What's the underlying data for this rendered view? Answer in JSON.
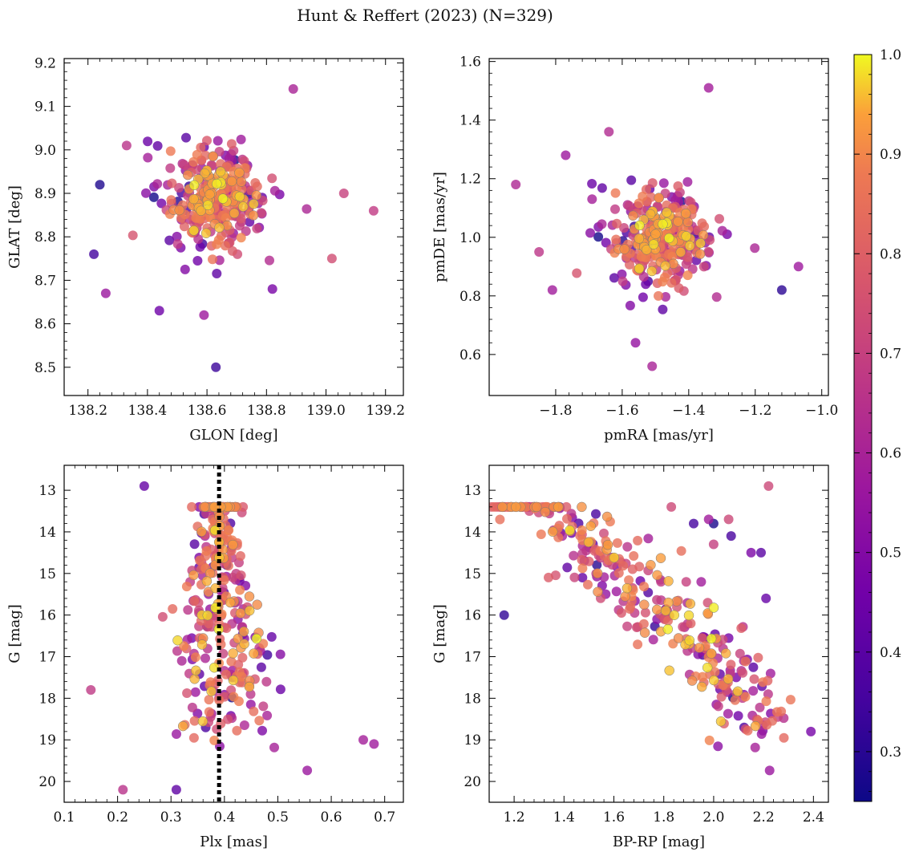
{
  "figure": {
    "title": "Hunt & Reffert (2023) (N=329)"
  },
  "colorbar": {
    "range": [
      0.25,
      1.0
    ],
    "ticks": [
      0.3,
      0.4,
      0.5,
      0.6,
      0.7,
      0.8,
      0.9,
      1.0
    ],
    "tick_labels": [
      "0.3",
      "0.4",
      "0.5",
      "0.6",
      "0.7",
      "0.8",
      "0.9",
      "1.0"
    ],
    "colormap": "plasma"
  },
  "chart_data": [
    {
      "type": "scatter",
      "xlabel": "GLON [deg]",
      "ylabel": "GLAT [deg]",
      "xlim": [
        138.12,
        139.26
      ],
      "ylim": [
        8.435,
        9.21
      ],
      "xticks": [
        138.2,
        138.4,
        138.6,
        138.8,
        139.0,
        139.2
      ],
      "xtick_labels": [
        "138.2",
        "138.4",
        "138.6",
        "138.8",
        "139.0",
        "139.2"
      ],
      "yticks": [
        8.5,
        8.6,
        8.7,
        8.8,
        8.9,
        9.0,
        9.1,
        9.2
      ],
      "ytick_labels": [
        "8.5",
        "8.6",
        "8.7",
        "8.8",
        "8.9",
        "9.0",
        "9.1",
        "9.2"
      ],
      "x_center": 138.62,
      "y_center": 8.89,
      "x_spread": 0.12,
      "y_spread": 0.085,
      "outliers": [
        [
          138.26,
          8.67
        ],
        [
          138.22,
          8.76
        ],
        [
          138.44,
          8.63
        ],
        [
          138.63,
          8.5
        ],
        [
          138.59,
          8.62
        ],
        [
          139.16,
          8.86
        ],
        [
          139.06,
          8.9
        ],
        [
          139.02,
          8.75
        ],
        [
          138.89,
          9.14
        ],
        [
          138.33,
          9.01
        ],
        [
          138.24,
          8.92
        ],
        [
          138.82,
          8.68
        ]
      ],
      "vline": null
    },
    {
      "type": "scatter",
      "xlabel": "pmRA [mas/yr]",
      "ylabel": "pmDE [mas/yr]",
      "xlim": [
        -2.0,
        -0.98
      ],
      "ylim": [
        0.46,
        1.61
      ],
      "xticks": [
        -1.8,
        -1.6,
        -1.4,
        -1.2,
        -1.0
      ],
      "xtick_labels": [
        "−1.8",
        "−1.6",
        "−1.4",
        "−1.2",
        "−1.0"
      ],
      "yticks": [
        0.6,
        0.8,
        1.0,
        1.2,
        1.4,
        1.6
      ],
      "ytick_labels": [
        "0.6",
        "0.8",
        "1.0",
        "1.2",
        "1.4",
        "1.6"
      ],
      "x_center": -1.49,
      "y_center": 1.0,
      "x_spread": 0.11,
      "y_spread": 0.12,
      "outliers": [
        [
          -1.92,
          1.18
        ],
        [
          -1.85,
          0.95
        ],
        [
          -1.81,
          0.82
        ],
        [
          -1.34,
          1.51
        ],
        [
          -1.07,
          0.9
        ],
        [
          -1.12,
          0.82
        ],
        [
          -1.51,
          0.56
        ],
        [
          -1.56,
          0.64
        ],
        [
          -1.77,
          1.28
        ],
        [
          -1.64,
          1.36
        ]
      ],
      "vline": null
    },
    {
      "type": "scatter",
      "xlabel": "Plx [mas]",
      "ylabel": "G [mag]",
      "xlim": [
        0.1,
        0.735
      ],
      "ylim": [
        20.5,
        12.4
      ],
      "xticks": [
        0.1,
        0.2,
        0.3,
        0.4,
        0.5,
        0.6,
        0.7
      ],
      "xtick_labels": [
        "0.1",
        "0.2",
        "0.3",
        "0.4",
        "0.5",
        "0.6",
        "0.7"
      ],
      "yticks": [
        13,
        14,
        15,
        16,
        17,
        18,
        19,
        20
      ],
      "ytick_labels": [
        "13",
        "14",
        "15",
        "16",
        "17",
        "18",
        "19",
        "20"
      ],
      "vline": 0.39,
      "outliers": [
        [
          0.25,
          12.9
        ],
        [
          0.15,
          17.8
        ],
        [
          0.68,
          19.1
        ],
        [
          0.66,
          19.0
        ],
        [
          0.21,
          20.2
        ],
        [
          0.31,
          20.2
        ]
      ]
    },
    {
      "type": "scatter",
      "xlabel": "BP-RP [mag]",
      "ylabel": "G [mag]",
      "xlim": [
        1.1,
        2.46
      ],
      "ylim": [
        20.5,
        12.4
      ],
      "xticks": [
        1.2,
        1.4,
        1.6,
        1.8,
        2.0,
        2.2,
        2.4
      ],
      "xtick_labels": [
        "1.2",
        "1.4",
        "1.6",
        "1.8",
        "2.0",
        "2.2",
        "2.4"
      ],
      "yticks": [
        13,
        14,
        15,
        16,
        17,
        18,
        19,
        20
      ],
      "ytick_labels": [
        "13",
        "14",
        "15",
        "16",
        "17",
        "18",
        "19",
        "20"
      ],
      "vline": null,
      "outliers": [
        [
          2.22,
          12.9
        ],
        [
          1.16,
          16.0
        ],
        [
          2.21,
          15.6
        ],
        [
          2.39,
          18.8
        ],
        [
          1.98,
          13.7
        ],
        [
          2.06,
          13.7
        ],
        [
          1.92,
          13.8
        ],
        [
          2.0,
          13.8
        ],
        [
          2.0,
          14.3
        ],
        [
          2.07,
          14.1
        ],
        [
          1.83,
          13.4
        ],
        [
          1.95,
          15.2
        ],
        [
          1.89,
          15.2
        ],
        [
          2.15,
          14.5
        ],
        [
          2.19,
          14.5
        ]
      ]
    }
  ]
}
